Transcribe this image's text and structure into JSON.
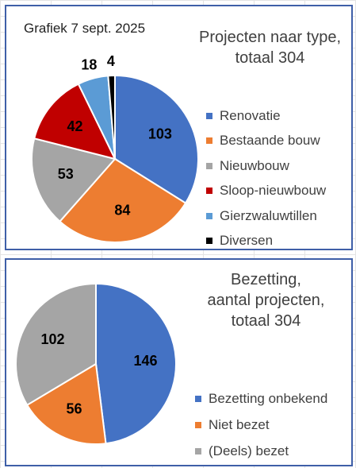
{
  "charts": [
    {
      "date_note": "Grafiek 7 sept. 2025",
      "title_lines": [
        "Projecten naar type,",
        "totaal 304"
      ]
    },
    {
      "title_lines": [
        "Bezetting,",
        "aantal projecten,",
        "totaal 304"
      ]
    }
  ],
  "chart_data": [
    {
      "type": "pie",
      "title": "Projecten naar type, totaal 304",
      "total": 304,
      "legend_position": "right",
      "start_angle_deg": 0,
      "direction": "clockwise",
      "slices": [
        {
          "label": "Renovatie",
          "value": 103,
          "color": "#4472c4",
          "label_color": "#000000"
        },
        {
          "label": "Bestaande bouw",
          "value": 84,
          "color": "#ed7d31",
          "label_color": "#000000"
        },
        {
          "label": "Nieuwbouw",
          "value": 53,
          "color": "#a5a5a5",
          "label_color": "#000000"
        },
        {
          "label": "Sloop-nieuwbouw",
          "value": 42,
          "color": "#c00000",
          "label_color": "#000000"
        },
        {
          "label": "Gierzwaluwtillen",
          "value": 18,
          "color": "#5b9bd5",
          "label_color": "#000000"
        },
        {
          "label": "Diversen",
          "value": 4,
          "color": "#000000",
          "label_color": "#000000"
        }
      ]
    },
    {
      "type": "pie",
      "title": "Bezetting, aantal projecten, totaal 304",
      "total": 304,
      "legend_position": "right",
      "start_angle_deg": 0,
      "direction": "clockwise",
      "slices": [
        {
          "label": "Bezetting onbekend",
          "value": 146,
          "color": "#4472c4",
          "label_color": "#000000"
        },
        {
          "label": "Niet bezet",
          "value": 56,
          "color": "#ed7d31",
          "label_color": "#000000"
        },
        {
          "label": "(Deels) bezet",
          "value": 102,
          "color": "#a5a5a5",
          "label_color": "#000000"
        }
      ]
    }
  ]
}
